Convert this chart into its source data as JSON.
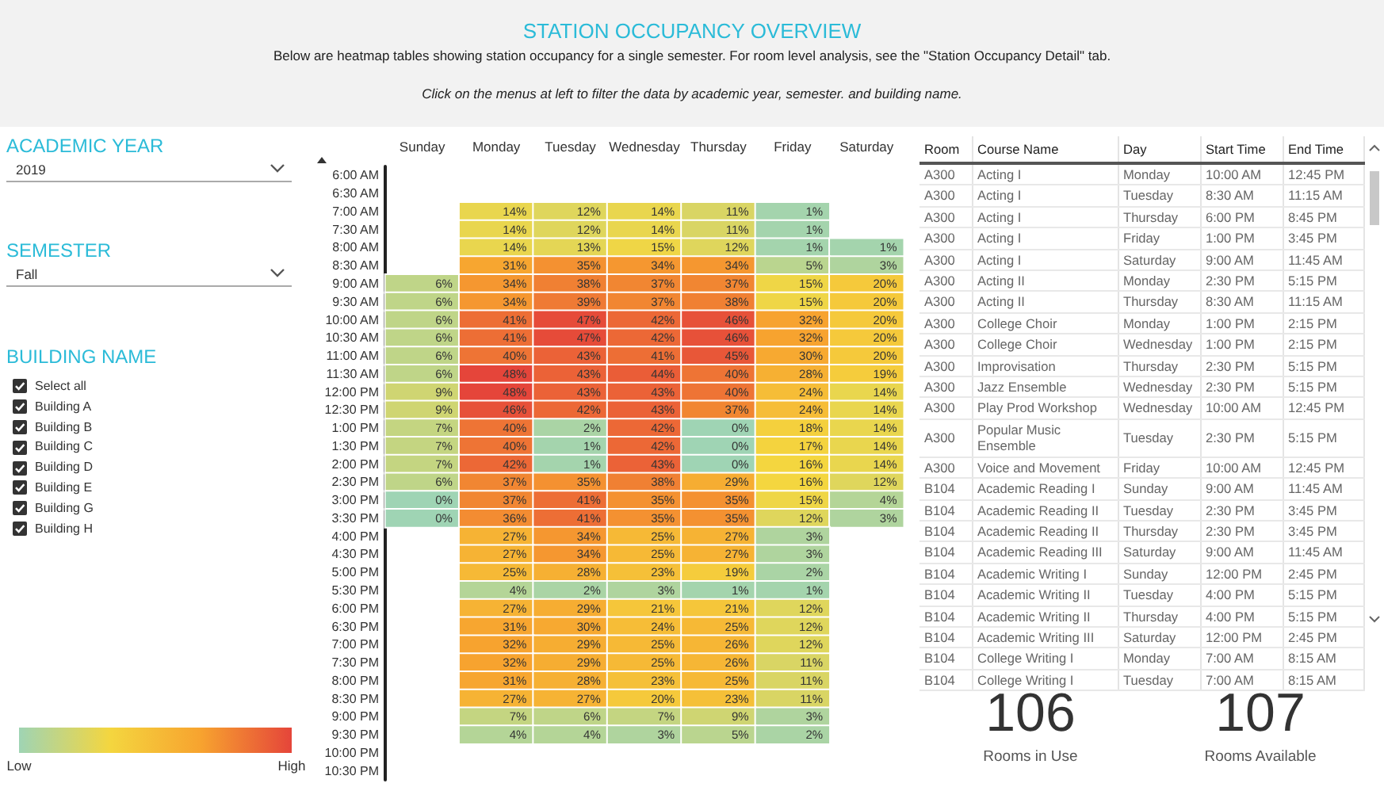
{
  "chart_data": [
    {
      "type": "other",
      "title": "STATION OCCUPANCY OVERVIEW",
      "subtitle": "Below are heatmap tables showing station occupancy for a single semester. For room level analysis, see the \"Station Occupancy Detail\" tab.",
      "annotations": [
        "Click on the menus at left to filter the data by academic year, semester. and building name."
      ]
    },
    {
      "type": "other",
      "annotations": [
        "ACADEMIC YEAR",
        "2019",
        "SEMESTER",
        "Fall",
        "BUILDING NAME"
      ],
      "categories": [
        "Select all",
        "Building A",
        "Building B",
        "Building C",
        "Building D",
        "Building E",
        "Building G",
        "Building H"
      ]
    },
    {
      "type": "heatmap",
      "categories": [
        "Sunday",
        "Monday",
        "Tuesday",
        "Wednesday",
        "Thursday",
        "Friday",
        "Saturday"
      ],
      "y_categories": [
        "6:00 AM",
        "6:30 AM",
        "7:00 AM",
        "7:30 AM",
        "8:00 AM",
        "8:30 AM",
        "9:00 AM",
        "9:30 AM",
        "10:00 AM",
        "10:30 AM",
        "11:00 AM",
        "11:30 AM",
        "12:00 PM",
        "12:30 PM",
        "1:00 PM",
        "1:30 PM",
        "2:00 PM",
        "2:30 PM",
        "3:00 PM",
        "3:30 PM",
        "4:00 PM",
        "4:30 PM",
        "5:00 PM",
        "5:30 PM",
        "6:00 PM",
        "6:30 PM",
        "7:00 PM",
        "7:30 PM",
        "8:00 PM",
        "8:30 PM",
        "9:00 PM",
        "9:30 PM",
        "10:00 PM",
        "10:30 PM"
      ],
      "cells": [
        [
          null,
          null,
          null,
          null,
          null,
          null,
          null
        ],
        [
          null,
          null,
          null,
          null,
          null,
          null,
          null
        ],
        [
          null,
          14,
          12,
          14,
          11,
          1,
          null
        ],
        [
          null,
          14,
          12,
          14,
          11,
          1,
          null
        ],
        [
          null,
          14,
          13,
          15,
          12,
          1,
          1
        ],
        [
          null,
          31,
          35,
          34,
          34,
          5,
          3
        ],
        [
          6,
          34,
          38,
          37,
          37,
          15,
          20
        ],
        [
          6,
          34,
          39,
          37,
          38,
          15,
          20
        ],
        [
          6,
          41,
          47,
          42,
          46,
          32,
          20
        ],
        [
          6,
          41,
          47,
          42,
          46,
          32,
          20
        ],
        [
          6,
          40,
          43,
          41,
          45,
          30,
          20
        ],
        [
          6,
          48,
          43,
          44,
          40,
          28,
          19
        ],
        [
          9,
          48,
          43,
          43,
          40,
          24,
          14
        ],
        [
          9,
          46,
          42,
          43,
          37,
          24,
          14
        ],
        [
          7,
          40,
          2,
          42,
          0,
          18,
          14
        ],
        [
          7,
          40,
          1,
          42,
          0,
          17,
          14
        ],
        [
          7,
          42,
          1,
          43,
          0,
          16,
          14
        ],
        [
          6,
          37,
          35,
          38,
          29,
          16,
          12
        ],
        [
          0,
          37,
          41,
          35,
          35,
          15,
          4
        ],
        [
          0,
          36,
          41,
          35,
          35,
          12,
          3
        ],
        [
          null,
          27,
          34,
          25,
          27,
          3,
          null
        ],
        [
          null,
          27,
          34,
          25,
          27,
          3,
          null
        ],
        [
          null,
          25,
          28,
          23,
          19,
          2,
          null
        ],
        [
          null,
          4,
          2,
          3,
          1,
          1,
          null
        ],
        [
          null,
          27,
          29,
          21,
          21,
          12,
          null
        ],
        [
          null,
          31,
          30,
          24,
          25,
          12,
          null
        ],
        [
          null,
          32,
          29,
          25,
          26,
          12,
          null
        ],
        [
          null,
          32,
          29,
          25,
          26,
          11,
          null
        ],
        [
          null,
          31,
          28,
          23,
          25,
          11,
          null
        ],
        [
          null,
          27,
          27,
          20,
          23,
          11,
          null
        ],
        [
          null,
          7,
          6,
          7,
          9,
          3,
          null
        ],
        [
          null,
          4,
          4,
          3,
          5,
          2,
          null
        ],
        [
          null,
          null,
          null,
          null,
          null,
          null,
          null
        ],
        [
          null,
          null,
          null,
          null,
          null,
          null,
          null
        ]
      ],
      "cell_labels": [
        [
          null,
          null,
          null,
          null,
          null,
          null,
          null
        ],
        [
          null,
          null,
          null,
          null,
          null,
          null,
          null
        ],
        [
          null,
          "14%",
          "12%",
          "14%",
          "11%",
          "1%",
          null
        ],
        [
          null,
          "14%",
          "12%",
          "14%",
          "11%",
          "1%",
          null
        ],
        [
          null,
          "14%",
          "13%",
          "15%",
          "12%",
          "1%",
          "1%"
        ],
        [
          null,
          "31%",
          "35%",
          "34%",
          "34%",
          "5%",
          "3%"
        ],
        [
          "6%",
          "34%",
          "38%",
          "37%",
          "37%",
          "15%",
          "20%"
        ],
        [
          "6%",
          "34%",
          "39%",
          "37%",
          "38%",
          "15%",
          "20%"
        ],
        [
          "6%",
          "41%",
          "47%",
          "42%",
          "46%",
          "32%",
          "20%"
        ],
        [
          "6%",
          "41%",
          "47%",
          "42%",
          "46%",
          "32%",
          "20%"
        ],
        [
          "6%",
          "40%",
          "43%",
          "41%",
          "45%",
          "30%",
          "20%"
        ],
        [
          "6%",
          "48%",
          "43%",
          "44%",
          "40%",
          "28%",
          "19%"
        ],
        [
          "9%",
          "48%",
          "43%",
          "43%",
          "40%",
          "24%",
          "14%"
        ],
        [
          "9%",
          "46%",
          "42%",
          "43%",
          "37%",
          "24%",
          "14%"
        ],
        [
          "7%",
          "40%",
          "2%",
          "42%",
          "0%",
          "18%",
          "14%"
        ],
        [
          "7%",
          "40%",
          "1%",
          "42%",
          "0%",
          "17%",
          "14%"
        ],
        [
          "7%",
          "42%",
          "1%",
          "43%",
          "0%",
          "16%",
          "14%"
        ],
        [
          "6%",
          "37%",
          "35%",
          "38%",
          "29%",
          "16%",
          "12%"
        ],
        [
          "0%",
          "37%",
          "41%",
          "35%",
          "35%",
          "15%",
          "4%"
        ],
        [
          "0%",
          "36%",
          "41%",
          "35%",
          "35%",
          "12%",
          "3%"
        ],
        [
          null,
          "27%",
          "34%",
          "25%",
          "27%",
          "3%",
          null
        ],
        [
          null,
          "27%",
          "34%",
          "25%",
          "27%",
          "3%",
          null
        ],
        [
          null,
          "25%",
          "28%",
          "23%",
          "19%",
          "2%",
          null
        ],
        [
          null,
          "4%",
          "2%",
          "3%",
          "1%",
          "1%",
          null
        ],
        [
          null,
          "27%",
          "29%",
          "21%",
          "21%",
          "12%",
          null
        ],
        [
          null,
          "31%",
          "30%",
          "24%",
          "25%",
          "12%",
          null
        ],
        [
          null,
          "32%",
          "29%",
          "25%",
          "26%",
          "12%",
          null
        ],
        [
          null,
          "32%",
          "29%",
          "25%",
          "26%",
          "11%",
          null
        ],
        [
          null,
          "31%",
          "28%",
          "23%",
          "25%",
          "11%",
          null
        ],
        [
          null,
          "27%",
          "27%",
          "20%",
          "23%",
          "11%",
          null
        ],
        [
          null,
          "7%",
          "6%",
          "7%",
          "9%",
          "3%",
          null
        ],
        [
          null,
          "4%",
          "4%",
          "3%",
          "5%",
          "2%",
          null
        ],
        [
          null,
          null,
          null,
          null,
          null,
          null,
          null
        ],
        [
          null,
          null,
          null,
          null,
          null,
          null,
          null
        ]
      ],
      "clim": [
        0,
        48
      ],
      "cticks": [
        {
          "value": 0,
          "label": "Low"
        },
        {
          "value": 48,
          "label": "High"
        }
      ]
    },
    {
      "type": "other",
      "categories": [
        "Room",
        "Course Name",
        "Day",
        "Start Time",
        "End Time"
      ],
      "cell_labels": [
        [
          "A300",
          "Acting I",
          "Monday",
          "10:00 AM",
          "12:45 PM"
        ],
        [
          "A300",
          "Acting I",
          "Tuesday",
          "8:30 AM",
          "11:15 AM"
        ],
        [
          "A300",
          "Acting I",
          "Thursday",
          "6:00 PM",
          "8:45 PM"
        ],
        [
          "A300",
          "Acting I",
          "Friday",
          "1:00 PM",
          "3:45 PM"
        ],
        [
          "A300",
          "Acting I",
          "Saturday",
          "9:00 AM",
          "11:45 AM"
        ],
        [
          "A300",
          "Acting II",
          "Monday",
          "2:30 PM",
          "5:15 PM"
        ],
        [
          "A300",
          "Acting II",
          "Thursday",
          "8:30 AM",
          "11:15 AM"
        ],
        [
          "A300",
          "College Choir",
          "Monday",
          "1:00 PM",
          "2:15 PM"
        ],
        [
          "A300",
          "College Choir",
          "Wednesday",
          "1:00 PM",
          "2:15 PM"
        ],
        [
          "A300",
          "Improvisation",
          "Thursday",
          "2:30 PM",
          "5:15 PM"
        ],
        [
          "A300",
          "Jazz Ensemble",
          "Wednesday",
          "2:30 PM",
          "5:15 PM"
        ],
        [
          "A300",
          "Play Prod Workshop",
          "Wednesday",
          "10:00 AM",
          "12:45 PM"
        ],
        [
          "A300",
          "Popular Music Ensemble",
          "Tuesday",
          "2:30 PM",
          "5:15 PM"
        ],
        [
          "A300",
          "Voice and Movement",
          "Friday",
          "10:00 AM",
          "12:45 PM"
        ],
        [
          "B104",
          "Academic Reading I",
          "Sunday",
          "9:00 AM",
          "11:45 AM"
        ],
        [
          "B104",
          "Academic Reading II",
          "Tuesday",
          "2:30 PM",
          "3:45 PM"
        ],
        [
          "B104",
          "Academic Reading II",
          "Thursday",
          "2:30 PM",
          "3:45 PM"
        ],
        [
          "B104",
          "Academic Reading III",
          "Saturday",
          "9:00 AM",
          "11:45 AM"
        ],
        [
          "B104",
          "Academic Writing I",
          "Sunday",
          "12:00 PM",
          "2:45 PM"
        ],
        [
          "B104",
          "Academic Writing II",
          "Tuesday",
          "4:00 PM",
          "5:15 PM"
        ],
        [
          "B104",
          "Academic Writing II",
          "Thursday",
          "4:00 PM",
          "5:15 PM"
        ],
        [
          "B104",
          "Academic Writing III",
          "Saturday",
          "12:00 PM",
          "2:45 PM"
        ],
        [
          "B104",
          "College Writing I",
          "Monday",
          "7:00 AM",
          "8:15 AM"
        ],
        [
          "B104",
          "College Writing I",
          "Tuesday",
          "7:00 AM",
          "8:15 AM"
        ]
      ]
    },
    {
      "type": "other",
      "categories": [
        "Rooms in Use",
        "Rooms Available"
      ],
      "values": [
        106,
        107
      ],
      "data_labels": true
    }
  ]
}
